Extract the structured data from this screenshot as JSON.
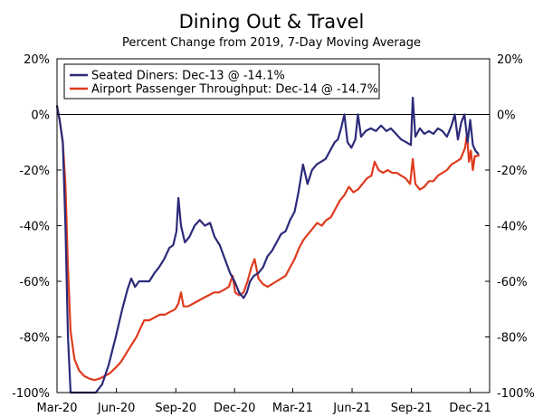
{
  "chart_data": {
    "type": "line",
    "title": "Dining Out & Travel",
    "subtitle": "Percent Change from 2019, 7-Day Moving Average",
    "xlabel": "",
    "ylabel": "",
    "ylim": [
      -100,
      20
    ],
    "yticks": [
      20,
      0,
      -20,
      -40,
      -60,
      -80,
      -100
    ],
    "ytick_labels": [
      "20%",
      "0%",
      "-20%",
      "-40%",
      "-60%",
      "-80%",
      "-100%"
    ],
    "xlim": [
      "2020-03-01",
      "2021-12-31"
    ],
    "xticks": [
      "2020-03-01",
      "2020-06-01",
      "2020-09-01",
      "2020-12-01",
      "2021-03-01",
      "2021-06-01",
      "2021-09-01",
      "2021-12-01"
    ],
    "xtick_labels": [
      "Mar-20",
      "Jun-20",
      "Sep-20",
      "Dec-20",
      "Mar-21",
      "Jun-21",
      "Sep-21",
      "Dec-21"
    ],
    "grid": false,
    "zero_line": true,
    "legend_position": "top-left",
    "series": [
      {
        "name": "Seated Diners: Dec-13 @ -14.1%",
        "color": "#2c2a7a",
        "points": [
          [
            "2020-03-01",
            3
          ],
          [
            "2020-03-05",
            -2
          ],
          [
            "2020-03-10",
            -10
          ],
          [
            "2020-03-14",
            -40
          ],
          [
            "2020-03-18",
            -80
          ],
          [
            "2020-03-22",
            -100
          ],
          [
            "2020-04-01",
            -100
          ],
          [
            "2020-04-15",
            -100
          ],
          [
            "2020-04-30",
            -100
          ],
          [
            "2020-05-10",
            -97
          ],
          [
            "2020-05-20",
            -90
          ],
          [
            "2020-05-31",
            -80
          ],
          [
            "2020-06-10",
            -70
          ],
          [
            "2020-06-18",
            -63
          ],
          [
            "2020-06-24",
            -59
          ],
          [
            "2020-06-30",
            -62
          ],
          [
            "2020-07-06",
            -60
          ],
          [
            "2020-07-14",
            -60
          ],
          [
            "2020-07-22",
            -60
          ],
          [
            "2020-07-30",
            -57
          ],
          [
            "2020-08-06",
            -55
          ],
          [
            "2020-08-14",
            -52
          ],
          [
            "2020-08-22",
            -48
          ],
          [
            "2020-08-28",
            -47
          ],
          [
            "2020-09-02",
            -42
          ],
          [
            "2020-09-05",
            -30
          ],
          [
            "2020-09-09",
            -40
          ],
          [
            "2020-09-15",
            -46
          ],
          [
            "2020-09-22",
            -44
          ],
          [
            "2020-09-30",
            -40
          ],
          [
            "2020-10-08",
            -38
          ],
          [
            "2020-10-16",
            -40
          ],
          [
            "2020-10-24",
            -39
          ],
          [
            "2020-10-31",
            -44
          ],
          [
            "2020-11-08",
            -47
          ],
          [
            "2020-11-16",
            -52
          ],
          [
            "2020-11-24",
            -57
          ],
          [
            "2020-12-01",
            -60
          ],
          [
            "2020-12-08",
            -64
          ],
          [
            "2020-12-15",
            -66
          ],
          [
            "2020-12-20",
            -64
          ],
          [
            "2020-12-25",
            -60
          ],
          [
            "2020-12-31",
            -58
          ],
          [
            "2021-01-07",
            -57
          ],
          [
            "2021-01-14",
            -55
          ],
          [
            "2021-01-21",
            -51
          ],
          [
            "2021-01-28",
            -49
          ],
          [
            "2021-02-04",
            -46
          ],
          [
            "2021-02-11",
            -43
          ],
          [
            "2021-02-18",
            -42
          ],
          [
            "2021-02-25",
            -38
          ],
          [
            "2021-03-04",
            -35
          ],
          [
            "2021-03-10",
            -28
          ],
          [
            "2021-03-17",
            -18
          ],
          [
            "2021-03-24",
            -25
          ],
          [
            "2021-03-31",
            -20
          ],
          [
            "2021-04-07",
            -18
          ],
          [
            "2021-04-14",
            -17
          ],
          [
            "2021-04-21",
            -16
          ],
          [
            "2021-04-28",
            -13
          ],
          [
            "2021-05-05",
            -10
          ],
          [
            "2021-05-10",
            -9
          ],
          [
            "2021-05-15",
            -5
          ],
          [
            "2021-05-20",
            0
          ],
          [
            "2021-05-25",
            -10
          ],
          [
            "2021-05-31",
            -12
          ],
          [
            "2021-06-06",
            -9
          ],
          [
            "2021-06-10",
            0
          ],
          [
            "2021-06-15",
            -8
          ],
          [
            "2021-06-22",
            -6
          ],
          [
            "2021-06-30",
            -5
          ],
          [
            "2021-07-08",
            -6
          ],
          [
            "2021-07-16",
            -4
          ],
          [
            "2021-07-24",
            -6
          ],
          [
            "2021-07-31",
            -5
          ],
          [
            "2021-08-08",
            -7
          ],
          [
            "2021-08-16",
            -9
          ],
          [
            "2021-08-24",
            -10
          ],
          [
            "2021-08-31",
            -11
          ],
          [
            "2021-09-03",
            6
          ],
          [
            "2021-09-07",
            -8
          ],
          [
            "2021-09-14",
            -5
          ],
          [
            "2021-09-21",
            -7
          ],
          [
            "2021-09-28",
            -6
          ],
          [
            "2021-10-05",
            -7
          ],
          [
            "2021-10-12",
            -5
          ],
          [
            "2021-10-19",
            -6
          ],
          [
            "2021-10-26",
            -8
          ],
          [
            "2021-11-02",
            -4
          ],
          [
            "2021-11-07",
            0
          ],
          [
            "2021-11-12",
            -9
          ],
          [
            "2021-11-17",
            -3
          ],
          [
            "2021-11-22",
            0
          ],
          [
            "2021-11-27",
            -10
          ],
          [
            "2021-12-01",
            -2
          ],
          [
            "2021-12-05",
            -11
          ],
          [
            "2021-12-09",
            -13
          ],
          [
            "2021-12-13",
            -14.1
          ]
        ]
      },
      {
        "name": "Airport Passenger Throughput: Dec-14 @ -14.7%",
        "color": "#de3b1e",
        "points": [
          [
            "2020-03-01",
            3
          ],
          [
            "2020-03-05",
            -2
          ],
          [
            "2020-03-10",
            -10
          ],
          [
            "2020-03-14",
            -25
          ],
          [
            "2020-03-18",
            -55
          ],
          [
            "2020-03-22",
            -78
          ],
          [
            "2020-03-28",
            -88
          ],
          [
            "2020-04-04",
            -92
          ],
          [
            "2020-04-12",
            -94
          ],
          [
            "2020-04-20",
            -95
          ],
          [
            "2020-04-28",
            -95.5
          ],
          [
            "2020-05-06",
            -95
          ],
          [
            "2020-05-14",
            -94
          ],
          [
            "2020-05-22",
            -93
          ],
          [
            "2020-05-31",
            -91
          ],
          [
            "2020-06-08",
            -89
          ],
          [
            "2020-06-16",
            -86
          ],
          [
            "2020-06-24",
            -83
          ],
          [
            "2020-07-02",
            -80
          ],
          [
            "2020-07-08",
            -77
          ],
          [
            "2020-07-14",
            -74
          ],
          [
            "2020-07-22",
            -74
          ],
          [
            "2020-07-30",
            -73
          ],
          [
            "2020-08-07",
            -72
          ],
          [
            "2020-08-15",
            -72
          ],
          [
            "2020-08-23",
            -71
          ],
          [
            "2020-08-31",
            -70
          ],
          [
            "2020-09-05",
            -68
          ],
          [
            "2020-09-09",
            -64
          ],
          [
            "2020-09-13",
            -69
          ],
          [
            "2020-09-20",
            -69
          ],
          [
            "2020-09-28",
            -68
          ],
          [
            "2020-10-06",
            -67
          ],
          [
            "2020-10-14",
            -66
          ],
          [
            "2020-10-22",
            -65
          ],
          [
            "2020-10-30",
            -64
          ],
          [
            "2020-11-07",
            -64
          ],
          [
            "2020-11-15",
            -63
          ],
          [
            "2020-11-22",
            -62
          ],
          [
            "2020-11-28",
            -58
          ],
          [
            "2020-12-02",
            -64
          ],
          [
            "2020-12-08",
            -65
          ],
          [
            "2020-12-15",
            -64
          ],
          [
            "2020-12-21",
            -60
          ],
          [
            "2020-12-27",
            -55
          ],
          [
            "2021-01-01",
            -52
          ],
          [
            "2021-01-07",
            -59
          ],
          [
            "2021-01-14",
            -61
          ],
          [
            "2021-01-21",
            -62
          ],
          [
            "2021-01-28",
            -61
          ],
          [
            "2021-02-04",
            -60
          ],
          [
            "2021-02-11",
            -59
          ],
          [
            "2021-02-18",
            -58
          ],
          [
            "2021-02-25",
            -55
          ],
          [
            "2021-03-04",
            -52
          ],
          [
            "2021-03-11",
            -48
          ],
          [
            "2021-03-18",
            -45
          ],
          [
            "2021-03-25",
            -43
          ],
          [
            "2021-04-01",
            -41
          ],
          [
            "2021-04-08",
            -39
          ],
          [
            "2021-04-15",
            -40
          ],
          [
            "2021-04-22",
            -38
          ],
          [
            "2021-04-29",
            -37
          ],
          [
            "2021-05-06",
            -34
          ],
          [
            "2021-05-13",
            -31
          ],
          [
            "2021-05-20",
            -29
          ],
          [
            "2021-05-27",
            -26
          ],
          [
            "2021-06-03",
            -28
          ],
          [
            "2021-06-10",
            -27
          ],
          [
            "2021-06-17",
            -25
          ],
          [
            "2021-06-24",
            -23
          ],
          [
            "2021-07-01",
            -22
          ],
          [
            "2021-07-06",
            -17
          ],
          [
            "2021-07-12",
            -20
          ],
          [
            "2021-07-19",
            -21
          ],
          [
            "2021-07-26",
            -20
          ],
          [
            "2021-08-02",
            -21
          ],
          [
            "2021-08-09",
            -21
          ],
          [
            "2021-08-16",
            -22
          ],
          [
            "2021-08-23",
            -23
          ],
          [
            "2021-08-30",
            -25
          ],
          [
            "2021-09-03",
            -16
          ],
          [
            "2021-09-07",
            -25
          ],
          [
            "2021-09-14",
            -27
          ],
          [
            "2021-09-21",
            -26
          ],
          [
            "2021-09-28",
            -24
          ],
          [
            "2021-10-05",
            -24
          ],
          [
            "2021-10-12",
            -22
          ],
          [
            "2021-10-19",
            -21
          ],
          [
            "2021-10-26",
            -20
          ],
          [
            "2021-11-02",
            -18
          ],
          [
            "2021-11-09",
            -17
          ],
          [
            "2021-11-16",
            -16
          ],
          [
            "2021-11-23",
            -12
          ],
          [
            "2021-11-26",
            -7
          ],
          [
            "2021-11-29",
            -17
          ],
          [
            "2021-12-02",
            -13
          ],
          [
            "2021-12-05",
            -20
          ],
          [
            "2021-12-08",
            -15
          ],
          [
            "2021-12-11",
            -15
          ],
          [
            "2021-12-14",
            -14.7
          ]
        ]
      }
    ]
  }
}
